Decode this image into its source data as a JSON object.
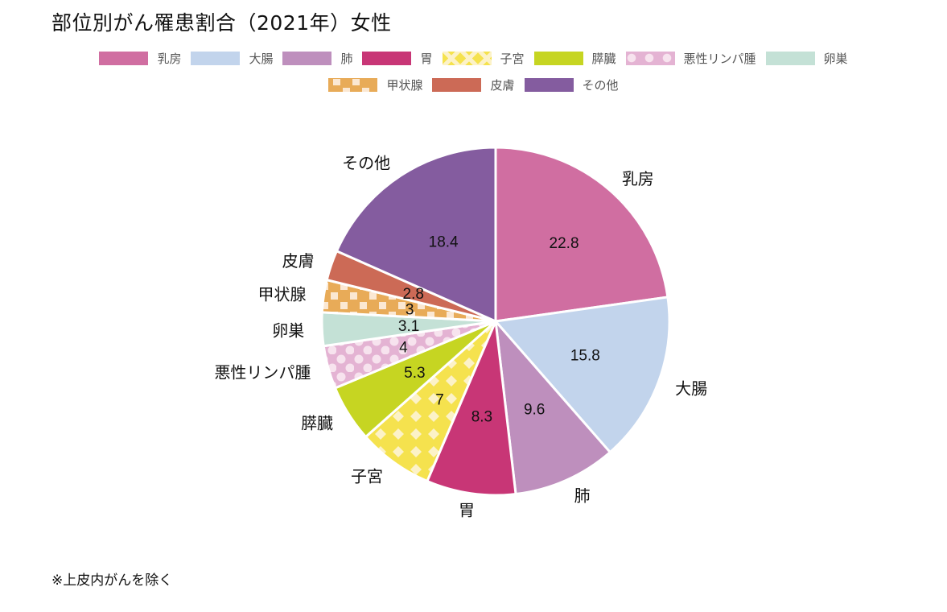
{
  "title": "部位別がん罹患割合（2021年）女性",
  "footnote": "※上皮内がんを除く",
  "legend": {
    "row1": [
      {
        "label": "乳房",
        "color": "#d06ea1",
        "pattern": "solid"
      },
      {
        "label": "大腸",
        "color": "#c2d4ec",
        "pattern": "solid"
      },
      {
        "label": "肺",
        "color": "#be8fbd",
        "pattern": "solid"
      },
      {
        "label": "胃",
        "color": "#c83676",
        "pattern": "solid"
      },
      {
        "label": "子宮",
        "color": "#f5e24e",
        "pattern": "diamond"
      },
      {
        "label": "膵臓",
        "color": "#c6d522",
        "pattern": "solid"
      },
      {
        "label": "悪性リンパ腫",
        "color": "#e4b3d3",
        "pattern": "dots"
      },
      {
        "label": "卵巣",
        "color": "#c4e1d6",
        "pattern": "solid"
      }
    ],
    "row2": [
      {
        "label": "甲状腺",
        "color": "#e8ab58",
        "pattern": "checker"
      },
      {
        "label": "皮膚",
        "color": "#cc6a56",
        "pattern": "solid"
      },
      {
        "label": "その他",
        "color": "#845c9f",
        "pattern": "solid"
      }
    ]
  },
  "chart_data": {
    "type": "pie",
    "title": "部位別がん罹患割合（2021年）女性",
    "categories": [
      "乳房",
      "大腸",
      "肺",
      "胃",
      "子宮",
      "膵臓",
      "悪性リンパ腫",
      "卵巣",
      "甲状腺",
      "皮膚",
      "その他"
    ],
    "values": [
      22.8,
      15.8,
      9.6,
      8.3,
      7,
      5.3,
      4,
      3.1,
      3,
      2.8,
      18.4
    ],
    "colors": [
      "#d06ea1",
      "#c2d4ec",
      "#be8fbd",
      "#c83676",
      "#f5e24e",
      "#c6d522",
      "#e4b3d3",
      "#c4e1d6",
      "#e8ab58",
      "#cc6a56",
      "#845c9f"
    ],
    "patterns": [
      "solid",
      "solid",
      "solid",
      "solid",
      "diamond",
      "solid",
      "dots",
      "solid",
      "checker",
      "solid",
      "solid"
    ],
    "start_angle": "12 o'clock",
    "direction": "clockwise",
    "legend_position": "top",
    "data_labels": "inside",
    "category_labels": "outside",
    "note": "※上皮内がんを除く"
  }
}
